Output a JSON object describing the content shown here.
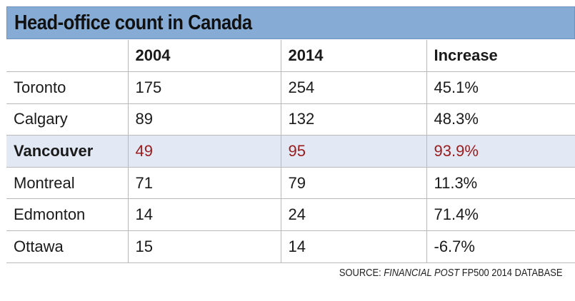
{
  "title": "Head-office count in Canada",
  "colors": {
    "title_bar": "#86acd6",
    "highlight_row": "#e2e8f4",
    "highlight_value": "#9b1c1c",
    "gridline": "#b9b9b9"
  },
  "chart_data": {
    "type": "table",
    "title": "Head-office count in Canada",
    "columns": [
      "",
      "2004",
      "2014",
      "Increase"
    ],
    "highlighted_row": "Vancouver",
    "rows": [
      {
        "city": "Toronto",
        "y2004": "175",
        "y2014": "254",
        "increase": "45.1%"
      },
      {
        "city": "Calgary",
        "y2004": "89",
        "y2014": "132",
        "increase": "48.3%"
      },
      {
        "city": "Vancouver",
        "y2004": "49",
        "y2014": "95",
        "increase": "93.9%"
      },
      {
        "city": "Montreal",
        "y2004": "71",
        "y2014": "79",
        "increase": "11.3%"
      },
      {
        "city": "Edmonton",
        "y2004": "14",
        "y2014": "24",
        "increase": "71.4%"
      },
      {
        "city": "Ottawa",
        "y2004": "15",
        "y2014": "14",
        "increase": "-6.7%"
      }
    ]
  },
  "source": {
    "prefix": "SOURCE: ",
    "publication": "FINANCIAL POST",
    "suffix": " FP500 2014 DATABASE"
  }
}
